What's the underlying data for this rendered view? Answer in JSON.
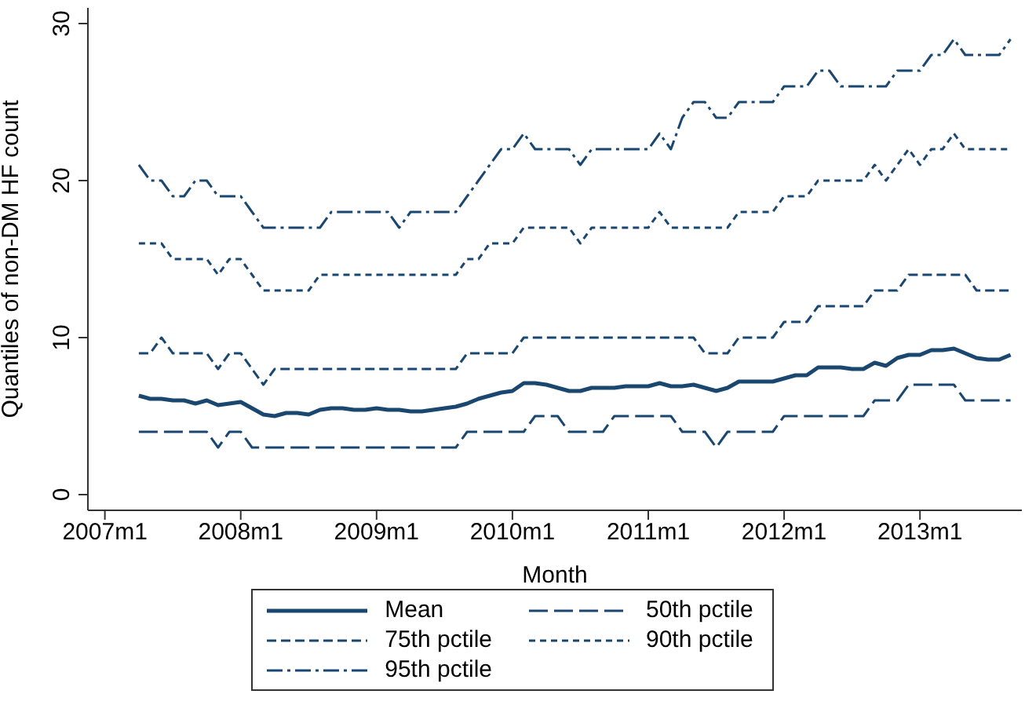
{
  "chart_data": {
    "type": "line",
    "xlabel": "Month",
    "ylabel": "Quantiles of non-DM HF count",
    "x": [
      "2007-04",
      "2007-05",
      "2007-06",
      "2007-07",
      "2007-08",
      "2007-09",
      "2007-10",
      "2007-11",
      "2007-12",
      "2008-01",
      "2008-02",
      "2008-03",
      "2008-04",
      "2008-05",
      "2008-06",
      "2008-07",
      "2008-08",
      "2008-09",
      "2008-10",
      "2008-11",
      "2008-12",
      "2009-01",
      "2009-02",
      "2009-03",
      "2009-04",
      "2009-05",
      "2009-06",
      "2009-07",
      "2009-08",
      "2009-09",
      "2009-10",
      "2009-11",
      "2009-12",
      "2010-01",
      "2010-02",
      "2010-03",
      "2010-04",
      "2010-05",
      "2010-06",
      "2010-07",
      "2010-08",
      "2010-09",
      "2010-10",
      "2010-11",
      "2010-12",
      "2011-01",
      "2011-02",
      "2011-03",
      "2011-04",
      "2011-05",
      "2011-06",
      "2011-07",
      "2011-08",
      "2011-09",
      "2011-10",
      "2011-11",
      "2011-12",
      "2012-01",
      "2012-02",
      "2012-03",
      "2012-04",
      "2012-05",
      "2012-06",
      "2012-07",
      "2012-08",
      "2012-09",
      "2012-10",
      "2012-11",
      "2012-12",
      "2013-01",
      "2013-02",
      "2013-03",
      "2013-04",
      "2013-05",
      "2013-06",
      "2013-07",
      "2013-08",
      "2013-09"
    ],
    "series": [
      {
        "name": "Mean",
        "color": "#1a476f",
        "line_style": "solid",
        "values": [
          6.3,
          6.1,
          6.1,
          6.0,
          6.0,
          5.8,
          6.0,
          5.7,
          5.8,
          5.9,
          5.5,
          5.1,
          5.0,
          5.2,
          5.2,
          5.1,
          5.4,
          5.5,
          5.5,
          5.4,
          5.4,
          5.5,
          5.4,
          5.4,
          5.3,
          5.3,
          5.4,
          5.5,
          5.6,
          5.8,
          6.1,
          6.3,
          6.5,
          6.6,
          7.1,
          7.1,
          7.0,
          6.8,
          6.6,
          6.6,
          6.8,
          6.8,
          6.8,
          6.9,
          6.9,
          6.9,
          7.1,
          6.9,
          6.9,
          7.0,
          6.8,
          6.6,
          6.8,
          7.2,
          7.2,
          7.2,
          7.2,
          7.4,
          7.6,
          7.6,
          8.1,
          8.1,
          8.1,
          8.0,
          8.0,
          8.4,
          8.2,
          8.7,
          8.9,
          8.9,
          9.2,
          9.2,
          9.3,
          9.0,
          8.7,
          8.6,
          8.6,
          8.9
        ]
      },
      {
        "name": "50th pctile",
        "color": "#1a476f",
        "line_style": "dashed",
        "values": [
          4,
          4,
          4,
          4,
          4,
          4,
          4,
          3,
          4,
          4,
          3,
          3,
          3,
          3,
          3,
          3,
          3,
          3,
          3,
          3,
          3,
          3,
          3,
          3,
          3,
          3,
          3,
          3,
          3,
          4,
          4,
          4,
          4,
          4,
          4,
          5,
          5,
          5,
          4,
          4,
          4,
          4,
          5,
          5,
          5,
          5,
          5,
          5,
          4,
          4,
          4,
          3,
          4,
          4,
          4,
          4,
          4,
          5,
          5,
          5,
          5,
          5,
          5,
          5,
          5,
          6,
          6,
          6,
          7,
          7,
          7,
          7,
          7,
          6,
          6,
          6,
          6,
          6
        ]
      },
      {
        "name": "75th pctile",
        "color": "#1a476f",
        "line_style": "dashed",
        "values": [
          9,
          9,
          10,
          9,
          9,
          9,
          9,
          8,
          9,
          9,
          8,
          7,
          8,
          8,
          8,
          8,
          8,
          8,
          8,
          8,
          8,
          8,
          8,
          8,
          8,
          8,
          8,
          8,
          8,
          9,
          9,
          9,
          9,
          9,
          10,
          10,
          10,
          10,
          10,
          10,
          10,
          10,
          10,
          10,
          10,
          10,
          10,
          10,
          10,
          10,
          9,
          9,
          9,
          10,
          10,
          10,
          10,
          11,
          11,
          11,
          12,
          12,
          12,
          12,
          12,
          13,
          13,
          13,
          14,
          14,
          14,
          14,
          14,
          14,
          13,
          13,
          13,
          13
        ]
      },
      {
        "name": "90th pctile",
        "color": "#1a476f",
        "line_style": "dotted",
        "values": [
          16,
          16,
          16,
          15,
          15,
          15,
          15,
          14,
          15,
          15,
          14,
          13,
          13,
          13,
          13,
          13,
          14,
          14,
          14,
          14,
          14,
          14,
          14,
          14,
          14,
          14,
          14,
          14,
          14,
          15,
          15,
          16,
          16,
          16,
          17,
          17,
          17,
          17,
          17,
          16,
          17,
          17,
          17,
          17,
          17,
          17,
          18,
          17,
          17,
          17,
          17,
          17,
          17,
          18,
          18,
          18,
          18,
          19,
          19,
          19,
          20,
          20,
          20,
          20,
          20,
          21,
          20,
          21,
          22,
          21,
          22,
          22,
          23,
          22,
          22,
          22,
          22,
          22
        ]
      },
      {
        "name": "95th pctile",
        "color": "#1a476f",
        "line_style": "dotted",
        "values": [
          21,
          20,
          20,
          19,
          19,
          20,
          20,
          19,
          19,
          19,
          18,
          17,
          17,
          17,
          17,
          17,
          17,
          18,
          18,
          18,
          18,
          18,
          18,
          17,
          18,
          18,
          18,
          18,
          18,
          19,
          20,
          21,
          22,
          22,
          23,
          22,
          22,
          22,
          22,
          21,
          22,
          22,
          22,
          22,
          22,
          22,
          23,
          22,
          24,
          25,
          25,
          24,
          24,
          25,
          25,
          25,
          25,
          26,
          26,
          26,
          27,
          27,
          26,
          26,
          26,
          26,
          26,
          27,
          27,
          27,
          28,
          28,
          29,
          28,
          28,
          28,
          28,
          29
        ]
      }
    ],
    "xlim": [
      "2006-11-16",
      "2013-10-01"
    ],
    "xticks": [
      {
        "value": "2007-01",
        "label": "2007m1"
      },
      {
        "value": "2008-01",
        "label": "2008m1"
      },
      {
        "value": "2009-01",
        "label": "2009m1"
      },
      {
        "value": "2010-01",
        "label": "2010m1"
      },
      {
        "value": "2011-01",
        "label": "2011m1"
      },
      {
        "value": "2012-01",
        "label": "2012m1"
      },
      {
        "value": "2013-01",
        "label": "2013m1"
      }
    ],
    "ylim": [
      -1,
      31
    ],
    "yticks": [
      0,
      10,
      20,
      30
    ],
    "grid": false,
    "legend": "bottom",
    "marker": "none"
  }
}
